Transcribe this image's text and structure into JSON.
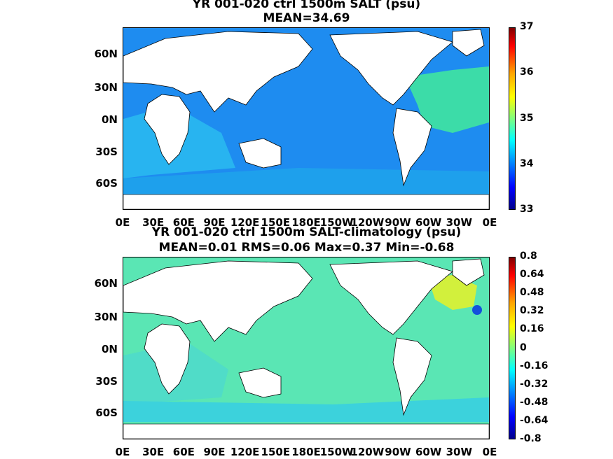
{
  "panels": [
    {
      "title_line1": "YR 001-020 ctrl 1500m SALT (psu)",
      "title_line2": "MEAN=34.69",
      "ocean_color": "#1e8cf0",
      "anomaly_colors": {
        "atlantic": "#3cdca8",
        "indian": "#28b4f0",
        "southern": "#1ea0ec"
      },
      "colorbar_ticks": [
        "37",
        "36",
        "35",
        "34",
        "33"
      ]
    },
    {
      "title_line1": "YR 001-020 ctrl 1500m SALT-climatology (psu)",
      "title_line2": "MEAN=0.01   RMS=0.06   Max=0.37   Min=-0.68",
      "ocean_color": "#5ae6b4",
      "anomaly_colors": {
        "atlantic": "#d2f03c",
        "indian": "#50dcc8",
        "southern": "#3cd2dc"
      },
      "colorbar_ticks": [
        "0.8",
        "0.64",
        "0.48",
        "0.32",
        "0.16",
        "0",
        "-0.16",
        "-0.32",
        "-0.48",
        "-0.64",
        "-0.8"
      ]
    }
  ],
  "lat_labels": [
    "60N",
    "30N",
    "0N",
    "30S",
    "60S"
  ],
  "lon_labels": [
    "0E",
    "30E",
    "60E",
    "90E",
    "120E",
    "150E",
    "180E",
    "150W",
    "120W",
    "90W",
    "60W",
    "30W",
    "0E"
  ]
}
